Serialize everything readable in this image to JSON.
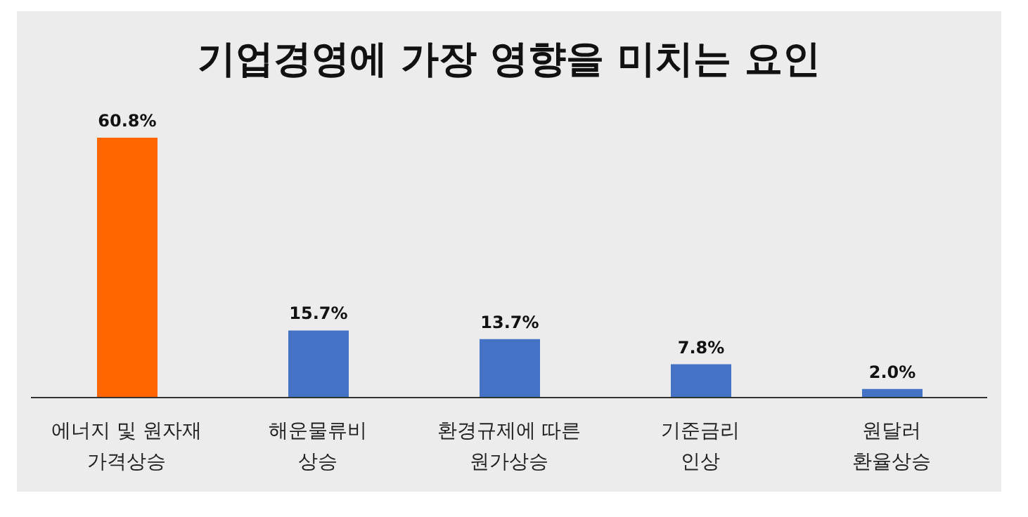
{
  "chart_data": {
    "type": "bar",
    "title": "기업경영에 가장 영향을 미치는 요인",
    "categories": [
      "에너지 및 원자재\n가격상승",
      "해운물류비\n상승",
      "환경규제에 따른\n원가상승",
      "기준금리\n인상",
      "원달러\n환율상승"
    ],
    "values": [
      60.8,
      15.7,
      13.7,
      7.8,
      2.0
    ],
    "colors": [
      "#ff6600",
      "#4472c4",
      "#4472c4",
      "#4472c4",
      "#4472c4"
    ],
    "value_labels": [
      "60.8%",
      "15.7%",
      "13.7%",
      "7.8%",
      "2.0%"
    ],
    "grid": false,
    "legend": false
  }
}
